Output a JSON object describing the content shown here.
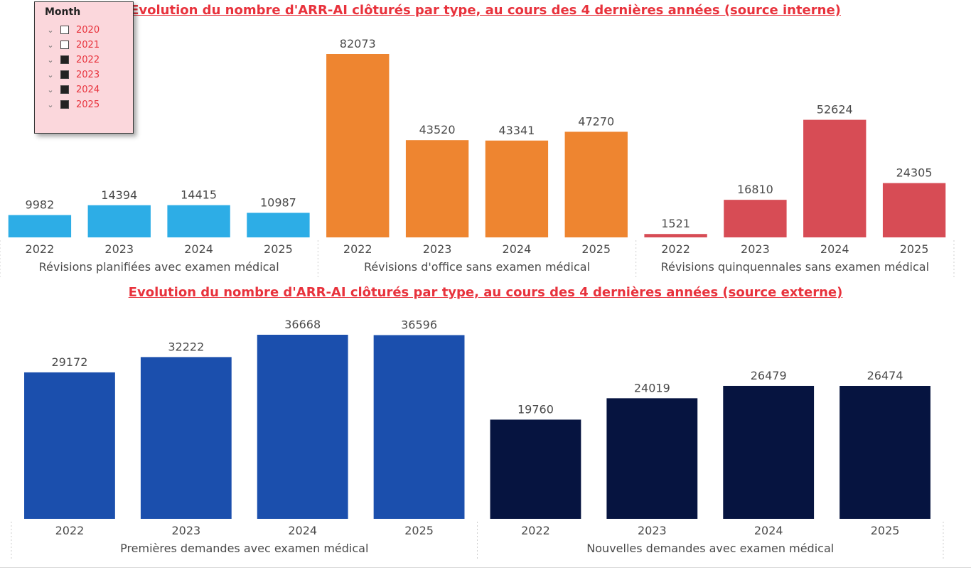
{
  "titles": {
    "internal": "Evolution du nombre d'ARR-AI clôturés par type, au cours des 4 dernières années (source interne)",
    "external": "Evolution du nombre d'ARR-AI clôturés par type, au cours des 4 dernières années (source externe)"
  },
  "slicer": {
    "title": "Month",
    "items": [
      {
        "label": "2020",
        "checked": false
      },
      {
        "label": "2021",
        "checked": false
      },
      {
        "label": "2022",
        "checked": true
      },
      {
        "label": "2023",
        "checked": true
      },
      {
        "label": "2024",
        "checked": true
      },
      {
        "label": "2025",
        "checked": true
      }
    ]
  },
  "chart_data": [
    {
      "type": "bar",
      "title": "Evolution du nombre d'ARR-AI clôturés par type, au cours des 4 dernières années (source interne)",
      "categories": [
        "2022",
        "2023",
        "2024",
        "2025"
      ],
      "series": [
        {
          "name": "Révisions planifiées avec examen médical",
          "values": [
            9982,
            14394,
            14415,
            10987
          ],
          "color": "#2dade6"
        },
        {
          "name": "Révisions d'office sans examen médical",
          "values": [
            82073,
            43520,
            43341,
            47270
          ],
          "color": "#ee8530"
        },
        {
          "name": "Révisions quinquennales sans examen médical",
          "values": [
            1521,
            16810,
            52624,
            24305
          ],
          "color": "#d74c55"
        }
      ],
      "ylim": [
        0,
        82073
      ]
    },
    {
      "type": "bar",
      "title": "Evolution du nombre d'ARR-AI clôturés par type, au cours des 4 dernières années (source externe)",
      "categories": [
        "2022",
        "2023",
        "2024",
        "2025"
      ],
      "series": [
        {
          "name": "Premières demandes avec examen médical",
          "values": [
            29172,
            32222,
            36668,
            36596
          ],
          "color": "#1b4fad"
        },
        {
          "name": "Nouvelles demandes avec examen médical",
          "values": [
            19760,
            24019,
            26479,
            26474
          ],
          "color": "#061440"
        }
      ],
      "ylim": [
        0,
        36668
      ]
    }
  ]
}
